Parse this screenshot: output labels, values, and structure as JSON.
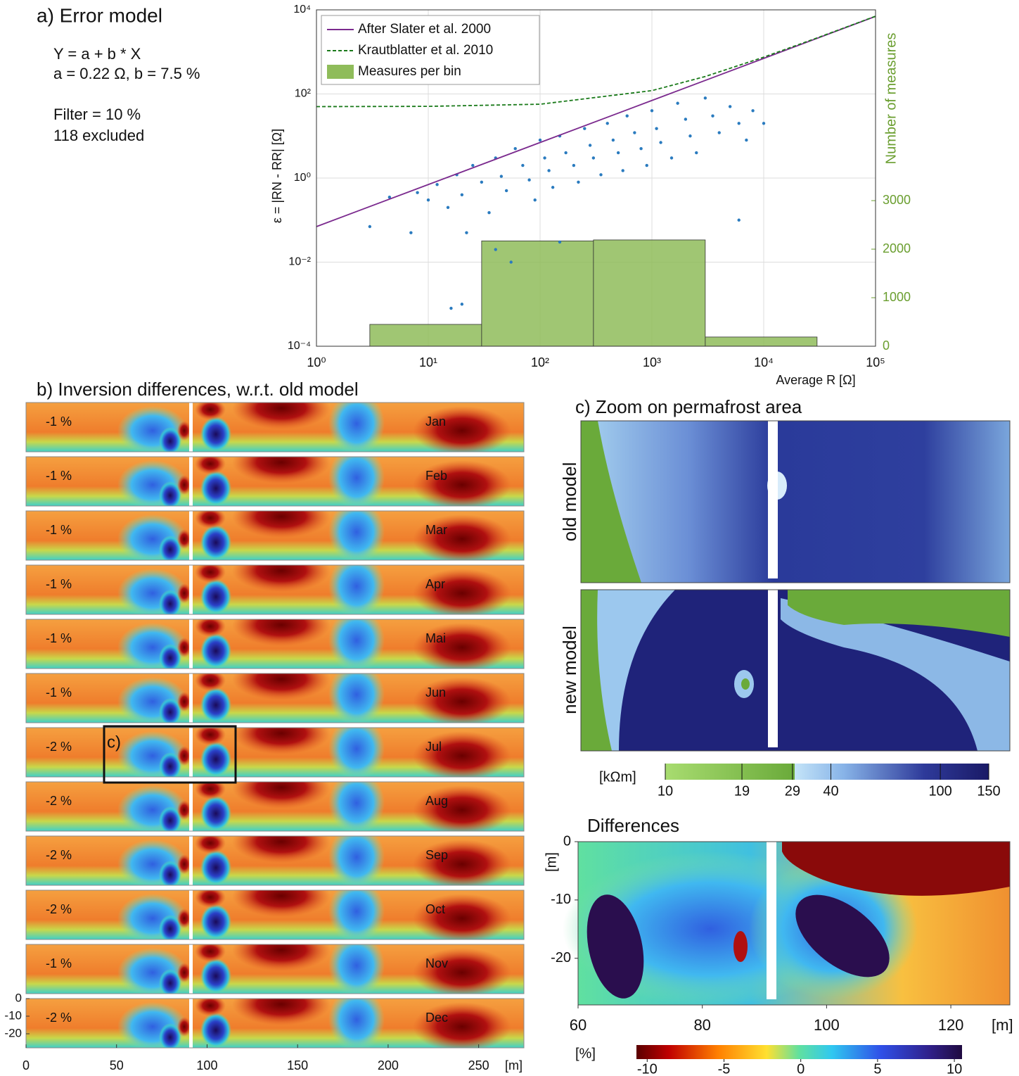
{
  "panel_a": {
    "title": "a) Error model",
    "model_lines": [
      "Y = a + b * X",
      "a = 0.22 Ω,  b = 7.5 %",
      "Filter = 10 %",
      "118 excluded"
    ]
  },
  "chart_data": {
    "type": "loglog",
    "xlabel": "Average R [Ω]",
    "ylabel": "ε = |RN - RR| [Ω]",
    "y2label": "Number of measures",
    "xlim": [
      1,
      100000
    ],
    "ylim": [
      0.0001,
      10000
    ],
    "y2lim": [
      0,
      6930
    ],
    "xticks": [
      {
        "value": 1,
        "label": "10⁰"
      },
      {
        "value": 10,
        "label": "10¹"
      },
      {
        "value": 100,
        "label": "10²"
      },
      {
        "value": 1000,
        "label": "10³"
      },
      {
        "value": 10000,
        "label": "10⁴"
      },
      {
        "value": 100000,
        "label": "10⁵"
      }
    ],
    "yticks": [
      {
        "value": 0.0001,
        "label": "10⁻⁴"
      },
      {
        "value": 0.01,
        "label": "10⁻²"
      },
      {
        "value": 1,
        "label": "10⁰"
      },
      {
        "value": 100,
        "label": "10²"
      },
      {
        "value": 10000,
        "label": "10⁴"
      }
    ],
    "y2ticks": [
      0,
      1000,
      2000,
      3000
    ],
    "log_x": true,
    "log_y": true,
    "grid": true,
    "legend": "upper-left",
    "series": [
      {
        "name": "After Slater et al. 2000",
        "color": "#7b2a8e",
        "dashed": false,
        "x": [
          1,
          10,
          100,
          1000,
          10000,
          100000
        ],
        "values": [
          0.07,
          0.7,
          7,
          70,
          700,
          7000
        ]
      },
      {
        "name": "Krautblatter et al. 2010",
        "color": "#1a7a1a",
        "dashed": true,
        "x": [
          1,
          10,
          100,
          1000,
          3000,
          10000,
          30000,
          100000
        ],
        "values": [
          50,
          50.7,
          57,
          120,
          260,
          750,
          2150,
          7050
        ]
      }
    ],
    "histogram": {
      "name": "Measures per bin",
      "color": "#8fbc5a",
      "axis": "y2",
      "bins": [
        3,
        30,
        300,
        3000,
        30000
      ],
      "counts": [
        450,
        2170,
        2190,
        190
      ]
    },
    "scatter": {
      "color": "#2a7bbf",
      "x": [
        4.5,
        7,
        8,
        10,
        12,
        15,
        18,
        20,
        22,
        25,
        30,
        35,
        40,
        45,
        50,
        55,
        60,
        70,
        80,
        90,
        100,
        110,
        120,
        130,
        150,
        170,
        200,
        220,
        250,
        280,
        300,
        350,
        400,
        450,
        500,
        550,
        600,
        700,
        800,
        900,
        1000,
        1100,
        1200,
        1500,
        1700,
        2000,
        2200,
        2500,
        3000,
        3500,
        4000,
        5000,
        6000,
        7000,
        8000,
        10000,
        3,
        20,
        16,
        6000,
        40,
        150
      ],
      "values": [
        0.35,
        0.05,
        0.45,
        0.3,
        0.7,
        0.2,
        1.2,
        0.4,
        0.05,
        2,
        0.8,
        0.15,
        3,
        1.1,
        0.5,
        0.01,
        5,
        2,
        0.9,
        0.3,
        8,
        3,
        1.5,
        0.6,
        10,
        4,
        2,
        0.8,
        15,
        6,
        3,
        1.2,
        20,
        8,
        4,
        1.5,
        30,
        12,
        5,
        2,
        40,
        15,
        7,
        3,
        60,
        25,
        10,
        4,
        80,
        30,
        12,
        50,
        20,
        8,
        40,
        20,
        0.07,
        0.001,
        0.0008,
        0.1,
        0.02,
        0.03
      ]
    }
  },
  "panel_b": {
    "title": "b) Inversion differences, w.r.t. old model",
    "xlabel": "[m]",
    "xlim": [
      0,
      275
    ],
    "xticks": [
      0,
      50,
      100,
      150,
      200,
      250
    ],
    "ylim": [
      -28,
      0
    ],
    "yticks": [
      0,
      -10,
      -20
    ],
    "zoom_label": "c)",
    "rows": [
      {
        "change": "-1 %",
        "month": "Jan"
      },
      {
        "change": "-1 %",
        "month": "Feb"
      },
      {
        "change": "-1 %",
        "month": "Mar"
      },
      {
        "change": "-1 %",
        "month": "Apr"
      },
      {
        "change": "-1 %",
        "month": "Mai"
      },
      {
        "change": "-1 %",
        "month": "Jun"
      },
      {
        "change": "-2 %",
        "month": "Jul"
      },
      {
        "change": "-2 %",
        "month": "Aug"
      },
      {
        "change": "-2 %",
        "month": "Sep"
      },
      {
        "change": "-2 %",
        "month": "Oct"
      },
      {
        "change": "-1 %",
        "month": "Nov"
      },
      {
        "change": "-2 %",
        "month": "Dec"
      }
    ]
  },
  "panel_c": {
    "title": "c) Zoom on permafrost area",
    "old_label": "old model",
    "new_label": "new model",
    "colorbar": {
      "unit": "[kΩm]",
      "lim": [
        10,
        150
      ],
      "log": true,
      "ticks": [
        10,
        19,
        29,
        40,
        100,
        150
      ]
    },
    "differences": {
      "title": "Differences",
      "xlabel": "[m]",
      "ylabel": "[m]",
      "xlim": [
        60,
        129.5
      ],
      "ylim": [
        -28,
        0
      ],
      "xticks": [
        60,
        80,
        100,
        120
      ],
      "yticks": [
        0,
        -10,
        -20
      ],
      "colorbar": {
        "unit": "[%]",
        "lim": [
          -10.7,
          10.5
        ],
        "ticks": [
          -10,
          -5,
          0,
          5,
          10
        ]
      }
    }
  }
}
